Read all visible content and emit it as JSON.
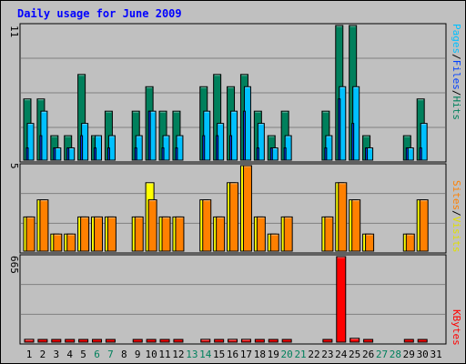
{
  "chart_data": [
    {
      "type": "bar",
      "title": "Daily usage for June 2009",
      "panel": "top",
      "ylabel_parts": [
        "Pages",
        "/",
        "Files",
        "/",
        "Hits"
      ],
      "ymax_label": "11",
      "ylim": [
        0,
        11
      ],
      "categories": [
        "1",
        "2",
        "3",
        "4",
        "5",
        "6",
        "7",
        "8",
        "9",
        "10",
        "11",
        "12",
        "13",
        "14",
        "15",
        "16",
        "17",
        "18",
        "19",
        "20",
        "21",
        "22",
        "23",
        "24",
        "25",
        "26",
        "27",
        "28",
        "29",
        "30",
        "31"
      ],
      "series": [
        {
          "name": "Hits",
          "values": [
            5,
            5,
            2,
            2,
            7,
            2,
            4,
            0,
            4,
            6,
            4,
            4,
            0,
            6,
            7,
            6,
            7,
            4,
            2,
            4,
            0,
            0,
            4,
            11,
            11,
            2,
            0,
            0,
            2,
            5,
            0
          ]
        },
        {
          "name": "Files",
          "values": [
            3,
            4,
            1,
            1,
            3,
            2,
            2,
            0,
            2,
            4,
            2,
            2,
            0,
            4,
            3,
            4,
            6,
            3,
            1,
            2,
            0,
            0,
            2,
            6,
            6,
            1,
            0,
            0,
            1,
            3,
            0
          ]
        },
        {
          "name": "Pages",
          "values": [
            1,
            2,
            1,
            1,
            2,
            1,
            1,
            0,
            1,
            4,
            1,
            1,
            0,
            2,
            2,
            2,
            4,
            1,
            1,
            1,
            0,
            0,
            1,
            5,
            3,
            1,
            0,
            0,
            1,
            1,
            0
          ]
        }
      ]
    },
    {
      "type": "bar",
      "panel": "middle",
      "ylabel_parts": [
        "Sites",
        "/",
        "Visits"
      ],
      "ymax_label": "5",
      "ylim": [
        0,
        5
      ],
      "categories": [
        "1",
        "2",
        "3",
        "4",
        "5",
        "6",
        "7",
        "8",
        "9",
        "10",
        "11",
        "12",
        "13",
        "14",
        "15",
        "16",
        "17",
        "18",
        "19",
        "20",
        "21",
        "22",
        "23",
        "24",
        "25",
        "26",
        "27",
        "28",
        "29",
        "30",
        "31"
      ],
      "series": [
        {
          "name": "Visits",
          "values": [
            2,
            3,
            1,
            1,
            2,
            2,
            2,
            0,
            2,
            4,
            2,
            2,
            0,
            3,
            2,
            4,
            5,
            2,
            1,
            2,
            0,
            0,
            2,
            4,
            3,
            1,
            0,
            0,
            1,
            3,
            0
          ]
        },
        {
          "name": "Sites",
          "values": [
            2,
            3,
            1,
            1,
            2,
            2,
            2,
            0,
            2,
            3,
            2,
            2,
            0,
            3,
            2,
            4,
            5,
            2,
            1,
            2,
            0,
            0,
            2,
            4,
            3,
            1,
            0,
            0,
            1,
            3,
            0
          ]
        }
      ]
    },
    {
      "type": "bar",
      "panel": "bottom",
      "ylabel_parts": [
        "KBytes"
      ],
      "ymax_label": "665",
      "ylim": [
        0,
        665
      ],
      "categories": [
        "1",
        "2",
        "3",
        "4",
        "5",
        "6",
        "7",
        "8",
        "9",
        "10",
        "11",
        "12",
        "13",
        "14",
        "15",
        "16",
        "17",
        "18",
        "19",
        "20",
        "21",
        "22",
        "23",
        "24",
        "25",
        "26",
        "27",
        "28",
        "29",
        "30",
        "31"
      ],
      "series": [
        {
          "name": "KBytes",
          "values": [
            22,
            20,
            10,
            10,
            20,
            10,
            20,
            0,
            18,
            20,
            18,
            20,
            0,
            22,
            20,
            22,
            22,
            14,
            10,
            18,
            0,
            0,
            14,
            665,
            30,
            10,
            0,
            0,
            10,
            16,
            0
          ]
        }
      ]
    }
  ],
  "weekend_days": [
    "6",
    "7",
    "13",
    "14",
    "20",
    "21",
    "27",
    "28"
  ],
  "colors": {
    "hits": "#00805C",
    "files": "#0040FF",
    "pages": "#00C0FF",
    "visits": "#FFFF00",
    "sites": "#FF8000",
    "kbytes": "#FF0000",
    "title": "#0000FF",
    "background": "#C0C0C0",
    "gridline": "#808080",
    "weekday_label": "#000000",
    "weekend_label": "#00805C"
  }
}
